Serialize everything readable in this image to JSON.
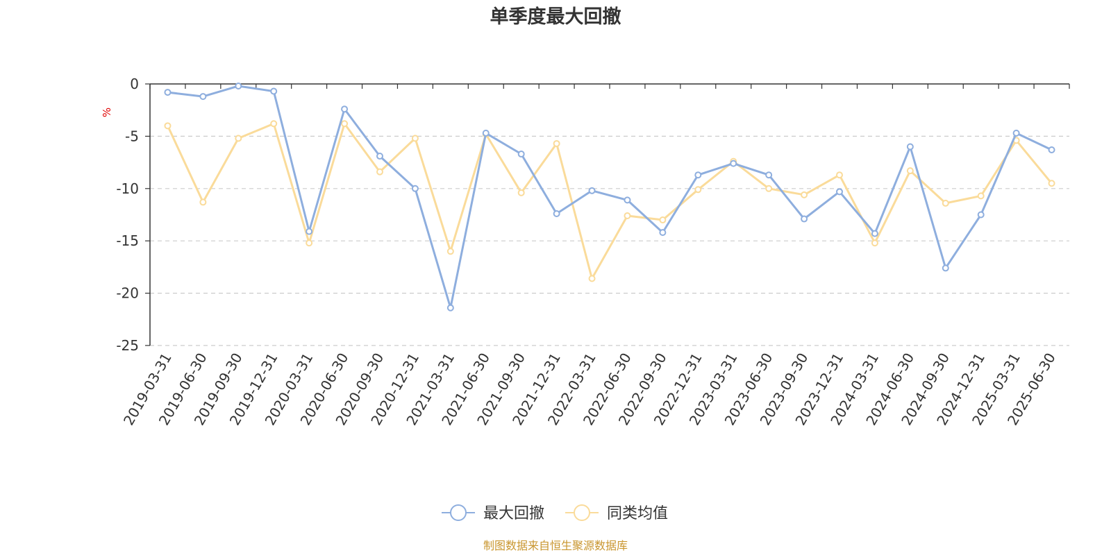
{
  "title": "单季度最大回撤",
  "source_note": "制图数据来自恒生聚源数据库",
  "chart_data": {
    "type": "line",
    "title": "单季度最大回撤",
    "ylabel": "%",
    "ylim": [
      -25,
      0
    ],
    "yticks": [
      0,
      -5,
      -10,
      -15,
      -20,
      -25
    ],
    "grid": true,
    "legend_position": "bottom-center",
    "x": [
      "2019-03-31",
      "2019-06-30",
      "2019-09-30",
      "2019-12-31",
      "2020-03-31",
      "2020-06-30",
      "2020-09-30",
      "2020-12-31",
      "2021-03-31",
      "2021-06-30",
      "2021-09-30",
      "2021-12-31",
      "2022-03-31",
      "2022-06-30",
      "2022-09-30",
      "2022-12-31",
      "2023-03-31",
      "2023-06-30",
      "2023-09-30",
      "2023-12-31",
      "2024-03-31",
      "2024-06-30",
      "2024-09-30",
      "2024-12-31",
      "2025-03-31",
      "2025-06-30"
    ],
    "series": [
      {
        "name": "最大回撤",
        "color": "#8eaede",
        "values": [
          -0.8,
          -1.2,
          -0.2,
          -0.7,
          -14.1,
          -2.4,
          -6.9,
          -10.0,
          -21.4,
          -4.7,
          -6.7,
          -12.4,
          -10.2,
          -11.1,
          -14.2,
          -8.7,
          -7.6,
          -8.7,
          -12.9,
          -10.3,
          -14.3,
          -6.0,
          -17.6,
          -12.5,
          -4.7,
          -6.3
        ]
      },
      {
        "name": "同类均值",
        "color": "#fadb9a",
        "values": [
          -4.0,
          -11.3,
          -5.2,
          -3.8,
          -15.2,
          -3.8,
          -8.4,
          -5.2,
          -16.0,
          -4.8,
          -10.4,
          -5.7,
          -18.6,
          -12.6,
          -13.0,
          -10.1,
          -7.4,
          -10.0,
          -10.6,
          -8.7,
          -15.2,
          -8.3,
          -11.4,
          -10.7,
          -5.4,
          -9.5
        ]
      }
    ]
  }
}
